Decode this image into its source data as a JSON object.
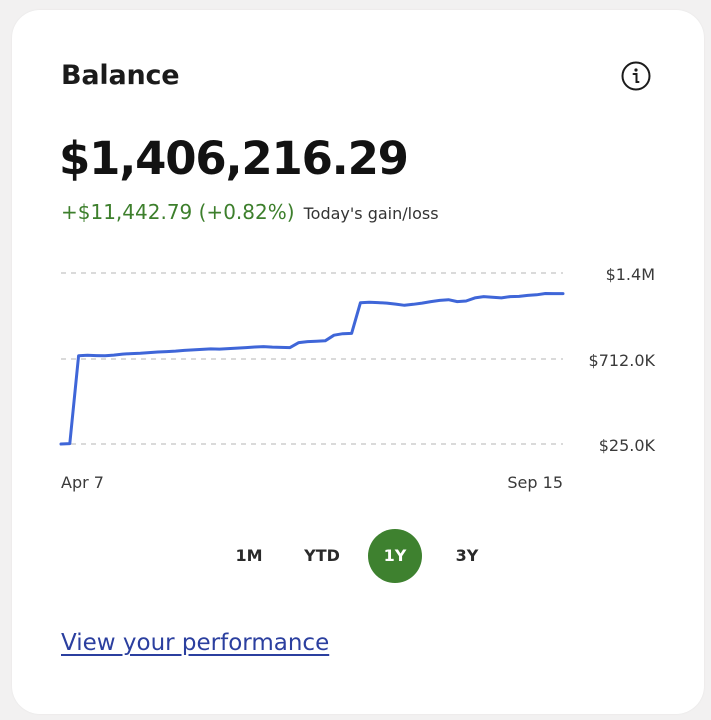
{
  "card": {
    "title": "Balance",
    "info_icon": "info-circle-icon"
  },
  "balance": {
    "value": "$1,406,216.29",
    "gain_value": "+$11,442.79 (+0.82%)",
    "gain_label": "Today's gain/loss",
    "gain_color": "#3d7f2c"
  },
  "chart": {
    "line_color": "#3f66d8"
  },
  "chart_data": {
    "type": "line",
    "x_labels": [
      "Apr 7",
      "Sep 15"
    ],
    "y_ticks": [
      "$1.4M",
      "$712.0K",
      "$25.0K"
    ],
    "ylim": [
      25000,
      1400000
    ],
    "grid": true,
    "series": [
      {
        "values": [
          25000,
          28000,
          735000,
          738000,
          736000,
          734000,
          740000,
          748000,
          752000,
          755000,
          760000,
          765000,
          768000,
          772000,
          778000,
          782000,
          786000,
          790000,
          788000,
          792000,
          796000,
          800000,
          805000,
          808000,
          804000,
          802000,
          800000,
          840000,
          848000,
          852000,
          855000,
          900000,
          912000,
          914000,
          1160000,
          1165000,
          1162000,
          1158000,
          1150000,
          1140000,
          1148000,
          1158000,
          1170000,
          1180000,
          1185000,
          1170000,
          1175000,
          1200000,
          1210000,
          1205000,
          1200000,
          1210000,
          1212000,
          1220000,
          1225000,
          1235000,
          1234000,
          1234000
        ]
      }
    ]
  },
  "ranges": {
    "items": [
      "1M",
      "YTD",
      "1Y",
      "3Y"
    ],
    "active": "1Y",
    "active_color": "#3e812f"
  },
  "footer": {
    "link_text": "View your performance",
    "link_color": "#2b3f9f"
  }
}
